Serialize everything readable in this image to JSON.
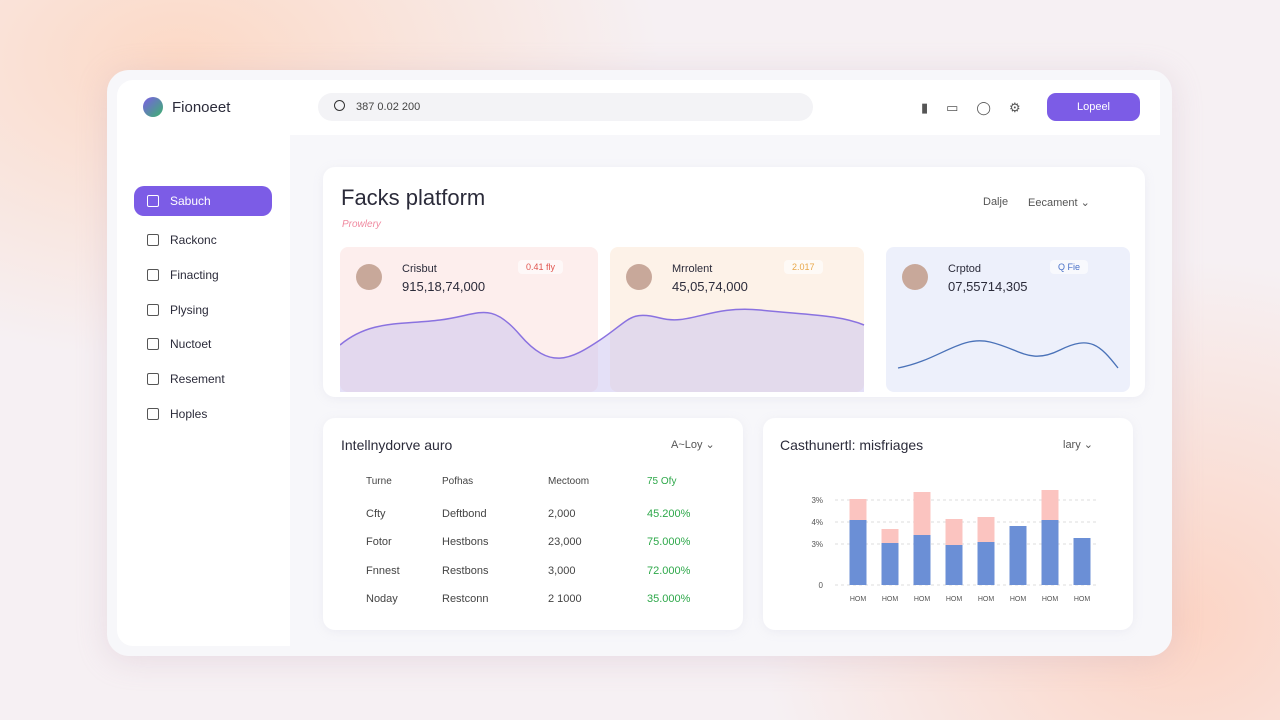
{
  "brand": "Fionoeet",
  "search": "387 0.02 200",
  "button": "Lopeel",
  "nav": [
    "Sabuch",
    "Rackonc",
    "Finacting",
    "Plysing",
    "Nuctoet",
    "Resement",
    "Hoples"
  ],
  "header": {
    "title": "Facks platform",
    "subtitle": "Prowlery",
    "filter_label": "Dalje",
    "filter": "Eecament"
  },
  "cards": [
    {
      "label": "Crisbut",
      "value": "915,18,74,000",
      "badge": "0.41 fly"
    },
    {
      "label": "Mrrolent",
      "value": "45,05,74,000",
      "badge": "2.017"
    },
    {
      "label": "Crptod",
      "value": "07,55714,305",
      "badge": "Q Fie"
    }
  ],
  "table": {
    "title": "Intellnydorve auro",
    "filter": "A~Loy",
    "columns": [
      "Turne",
      "Pofhas",
      "Mectoom",
      "75 Ofy"
    ],
    "rows": [
      [
        "Cfty",
        "Deftbond",
        "2,000",
        "45.200%"
      ],
      [
        "Fotor",
        "Hestbons",
        "23,000",
        "75.000%"
      ],
      [
        "Fnnest",
        "Restbons",
        "3,000",
        "72.000%"
      ],
      [
        "Noday",
        "Restconn",
        "2 1000",
        "35.000%"
      ]
    ]
  },
  "bar_chart": {
    "type": "bar",
    "title": "Casthunertl: misfriages",
    "filter": "lary",
    "y_labels": [
      "3%",
      "4%",
      "3%",
      "0"
    ],
    "categories": [
      "HOM",
      "HOM",
      "HOM",
      "HOM",
      "HOM",
      "HOM",
      "HOM",
      "HOM"
    ],
    "ylim": [
      0,
      100
    ],
    "series": [
      {
        "color": "#6b8fd6",
        "values": [
          65,
          42,
          50,
          40,
          43,
          59,
          65,
          47
        ]
      },
      {
        "color": "#fbc4c0",
        "values": [
          21,
          14,
          43,
          26,
          25,
          0,
          30,
          0
        ]
      }
    ]
  }
}
